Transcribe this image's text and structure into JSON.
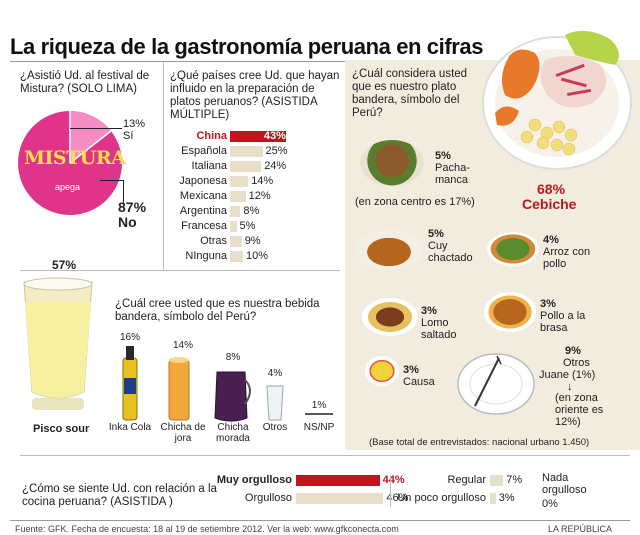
{
  "header": {
    "title": "La riqueza de la gastronomía peruana en cifras"
  },
  "mistura": {
    "question": "¿Asistió Ud. al festival de Mistura? (SOLO LIMA)",
    "logo_text": "MISTURA",
    "logo_sub": "apega",
    "yes_pct": "13%",
    "yes_label": "Sí",
    "no_pct": "87%",
    "no_label": "No"
  },
  "countries": {
    "question": "¿Qué países cree Ud. que hayan influido en la preparación de platos peruanos? (ASISTIDA MÚLTIPLE)"
  },
  "drinks": {
    "question": "¿Cuál cree usted que es nuestra bebida bandera, símbolo del Perú?",
    "pisco_pct": "57%",
    "pisco_label": "Pisco sour"
  },
  "dishes": {
    "question": "¿Cuál considera usted que es nuestro plato bandera, símbolo del Perú?",
    "cebiche_pct": "68%",
    "cebiche_label": "Cebiche",
    "pachamanca_pct": "5%",
    "pachamanca_label": "Pacha-manca",
    "pachamanca_note": "(en zona centro es 17%)",
    "cuy_pct": "5%",
    "cuy_label": "Cuy chactado",
    "arroz_pct": "4%",
    "arroz_label": "Arroz con pollo",
    "lomo_pct": "3%",
    "lomo_label": "Lomo saltado",
    "pollo_pct": "3%",
    "pollo_label": "Pollo a la brasa",
    "causa_pct": "3%",
    "causa_label": "Causa",
    "otros_pct": "9%",
    "otros_label": "Otros",
    "juane": "Juane (1%)",
    "oriente_note": "(en zona oriente es 12%)",
    "base": "(Base total de entrevistados: nacional urbano 1.450)"
  },
  "pride": {
    "question": "¿Cómo se siente Ud. con relación a la cocina peruana? (ASISTIDA )"
  },
  "footer": {
    "source": "Fuente: GFK. Fecha de encuesta: 18 al 19 de setiembre 2012. Ver la web: www.gfkconecta.com",
    "brand": "LA REPÚBLICA"
  },
  "colors": {
    "accent_red": "#c0151d",
    "bar_beige": "#e7dfc9",
    "panel_beige": "#f1ecde",
    "mistura_pink": "#e0338a"
  },
  "chart_data": [
    {
      "type": "pie",
      "categories": [
        "Sí",
        "No"
      ],
      "values": [
        13,
        87
      ]
    },
    {
      "type": "bar",
      "categories": [
        "China",
        "Española",
        "Italiana",
        "Japonesa",
        "Mexicana",
        "Argentina",
        "Francesa",
        "Otras",
        "NInguna"
      ],
      "values": [
        43,
        25,
        24,
        14,
        12,
        8,
        5,
        9,
        10
      ],
      "value_labels": [
        "43%",
        "25%",
        "24%",
        "14%",
        "12%",
        "8%",
        "5%",
        "9%",
        "10%"
      ]
    },
    {
      "type": "bar",
      "categories": [
        "Pisco sour",
        "Inka Cola",
        "Chicha de jora",
        "Chicha morada",
        "Otros",
        "NS/NP"
      ],
      "values": [
        57,
        16,
        14,
        8,
        4,
        1
      ],
      "value_labels": [
        "57%",
        "16%",
        "14%",
        "8%",
        "4%",
        "1%"
      ]
    },
    {
      "type": "bar",
      "categories": [
        "Cebiche",
        "Pacha-manca",
        "Cuy chactado",
        "Arroz con pollo",
        "Lomo saltado",
        "Pollo a la brasa",
        "Causa",
        "Otros"
      ],
      "values": [
        68,
        5,
        5,
        4,
        3,
        3,
        3,
        9
      ]
    },
    {
      "type": "bar",
      "categories": [
        "Muy orgulloso",
        "Orgulloso",
        "Regular",
        "Un poco orgulloso",
        "Nada orgulloso"
      ],
      "values": [
        44,
        46,
        7,
        3,
        0
      ],
      "value_labels": [
        "44%",
        "46%",
        "7%",
        "3%",
        "0%"
      ]
    }
  ]
}
